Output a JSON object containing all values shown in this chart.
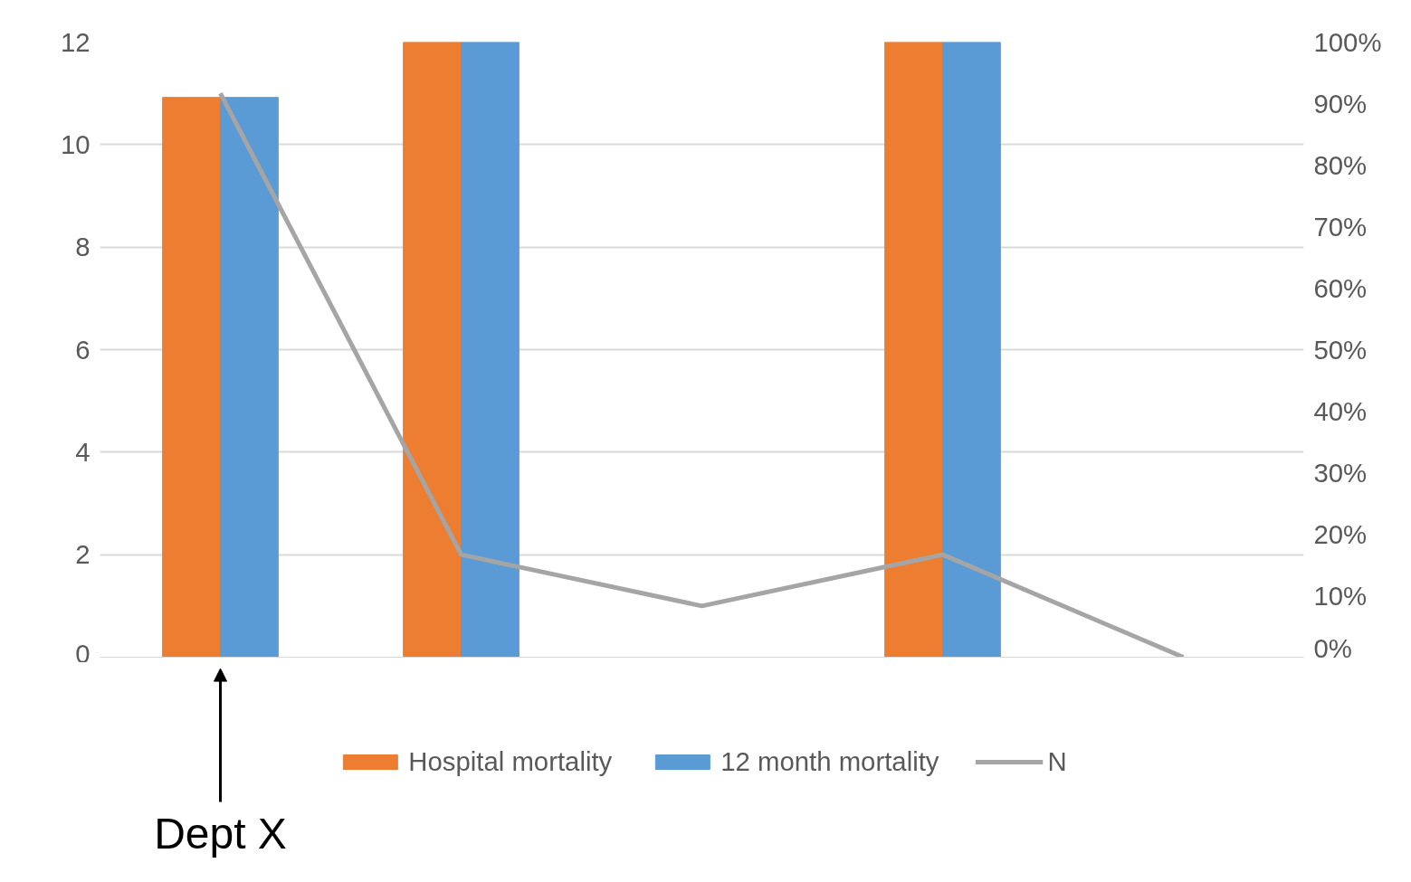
{
  "chart_data": {
    "type": "bar",
    "categories": [
      null,
      null,
      null,
      null,
      null
    ],
    "series": [
      {
        "name": "Hospital mortality",
        "color": "#ed7d31",
        "axis": "y2",
        "values": [
          91,
          100,
          null,
          100,
          null
        ]
      },
      {
        "name": "12 month mortality",
        "color": "#5b9bd5",
        "axis": "y2",
        "values": [
          91,
          100,
          null,
          100,
          null
        ]
      },
      {
        "name": "N",
        "type": "line",
        "color": "#a5a5a5",
        "values": [
          11,
          2,
          1,
          2,
          0
        ]
      }
    ],
    "ylim": [
      0,
      12
    ],
    "yticks": [
      0,
      2,
      4,
      6,
      8,
      10,
      12
    ],
    "y2lim": [
      0,
      100
    ],
    "y2ticks": [
      {
        "value": 0,
        "label": "0%"
      },
      {
        "value": 10,
        "label": "10%"
      },
      {
        "value": 20,
        "label": "20%"
      },
      {
        "value": 30,
        "label": "30%"
      },
      {
        "value": 40,
        "label": "40%"
      },
      {
        "value": 50,
        "label": "50%"
      },
      {
        "value": 60,
        "label": "60%"
      },
      {
        "value": 70,
        "label": "70%"
      },
      {
        "value": 80,
        "label": "80%"
      },
      {
        "value": 90,
        "label": "90%"
      },
      {
        "value": 100,
        "label": "100%"
      }
    ],
    "grid": "y",
    "legend": "bottom",
    "annotations": [
      "Dept X"
    ]
  }
}
